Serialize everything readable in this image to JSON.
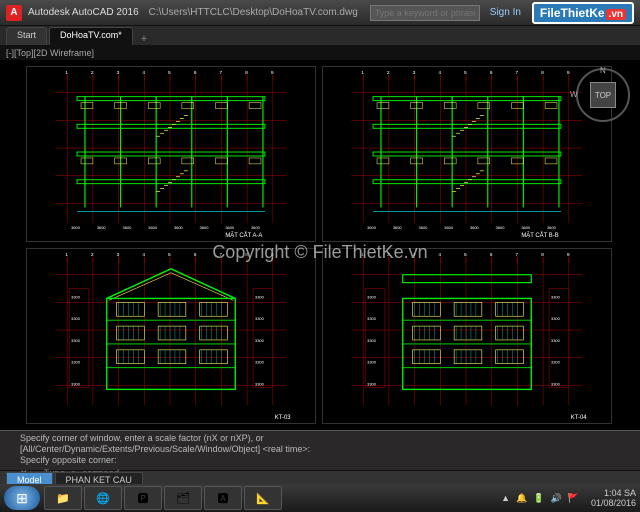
{
  "titlebar": {
    "logo": "A",
    "app": "Autodesk AutoCAD 2016",
    "filepath": "C:\\Users\\HTTCLC\\Desktop\\DoHoaTV.com.dwg",
    "search_placeholder": "Type a keyword or phrase",
    "signin": "Sign In"
  },
  "tabs": {
    "start": "Start",
    "active": "DoHoaTV.com*"
  },
  "viewlabel": "[-][Top][2D Wireframe]",
  "navcube": {
    "face": "TOP",
    "n": "N",
    "w": "W"
  },
  "watermark_logo": {
    "text": "FileThietKe",
    "suffix": ".vn"
  },
  "watermark_center": "Copyright © FileThietKe.vn",
  "drawings": {
    "grid_color": "#aa0000",
    "wall_color": "#00ee00",
    "detail_color": "#ffff66",
    "accent_color": "#00cccc",
    "text_color": "#ffffff",
    "labels": {
      "q0": "MẶT CẮT A-A",
      "q1": "MẶT CẮT B-B",
      "q2": "KT-03",
      "q3": "KT-04"
    }
  },
  "command": {
    "line1": "Specify corner of window, enter a scale factor (nX or nXP), or",
    "line2": "[All/Center/Dynamic/Extents/Previous/Scale/Window/Object] <real time>:",
    "line3": "Specify opposite corner:",
    "prompt": "Type a command"
  },
  "layout_tabs": {
    "active": "Model",
    "t1": "PHAN KET CAU"
  },
  "taskbar": {
    "icons": [
      "📁",
      "🌐",
      "🅿",
      "🗂",
      "🅰",
      "📐"
    ],
    "tray": [
      "▲",
      "🔔",
      "🔋",
      "🔊",
      "🚩"
    ],
    "time": "1:04 SA",
    "date": "01/08/2016"
  }
}
